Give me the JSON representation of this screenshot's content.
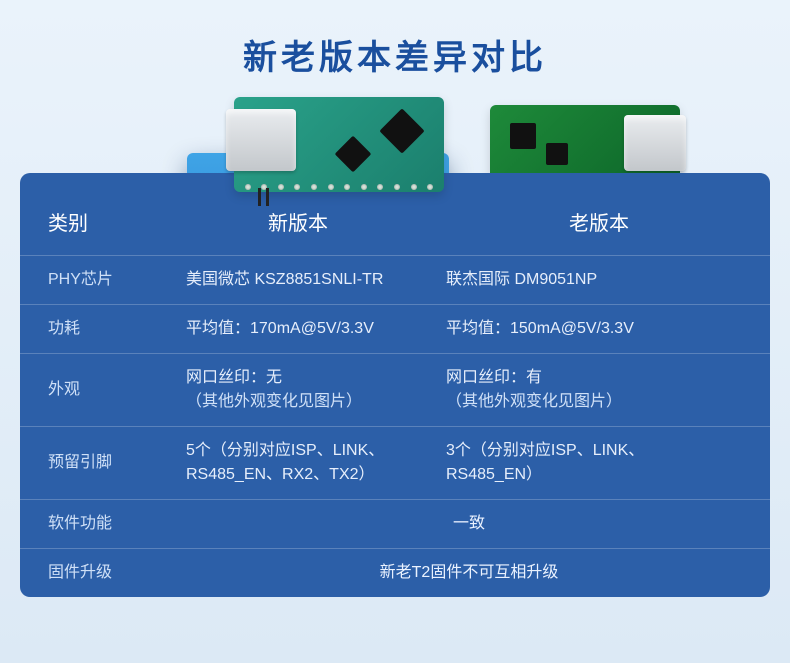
{
  "title": "新老版本差异对比",
  "headers": {
    "category": "类别",
    "new": "新版本",
    "old": "老版本"
  },
  "rows": {
    "phy": {
      "label": "PHY芯片",
      "new": "美国微芯 KSZ8851SNLI-TR",
      "old": "联杰国际 DM9051NP"
    },
    "power": {
      "label": "功耗",
      "new": "平均值：170mA@5V/3.3V",
      "old": "平均值：150mA@5V/3.3V"
    },
    "appearance": {
      "label": "外观",
      "new_l1": "网口丝印：无",
      "new_l2": "（其他外观变化见图片）",
      "old_l1": "网口丝印：有",
      "old_l2": "（其他外观变化见图片）"
    },
    "pins": {
      "label": "预留引脚",
      "new_l1": "5个（分别对应ISP、LINK、",
      "new_l2": "RS485_EN、RX2、TX2）",
      "old_l1": "3个（分别对应ISP、LINK、",
      "old_l2": "RS485_EN）"
    },
    "software": {
      "label": "软件功能",
      "value": "一致"
    },
    "firmware": {
      "label": "固件升级",
      "value": "新老T2固件不可互相升级"
    }
  },
  "colors": {
    "title": "#1a4f9e",
    "table_bg": "#2c5fa8",
    "highlight_top": "#3fa4e6",
    "highlight_bottom": "#1e5fb3",
    "page_bg_top": "#eaf3fb",
    "page_bg_bottom": "#dce9f5",
    "divider": "rgba(255,255,255,0.22)"
  }
}
